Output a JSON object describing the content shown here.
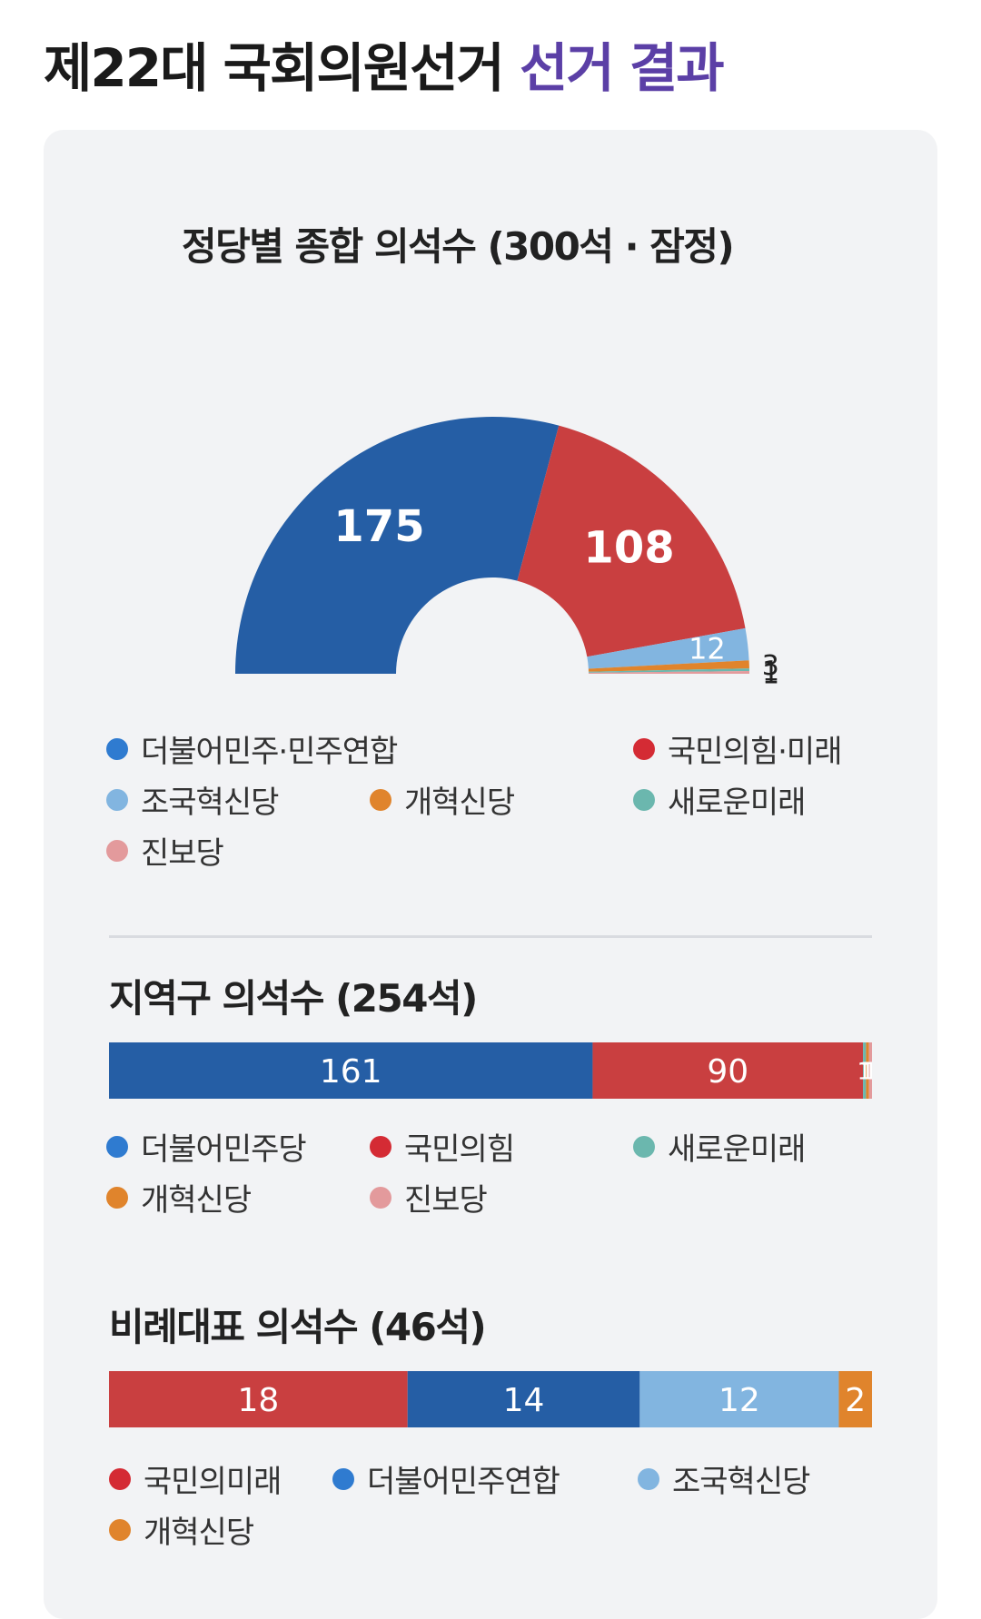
{
  "header": {
    "title_main": "제22대 국회의원선거",
    "title_accent": "선거 결과"
  },
  "colors": {
    "blue": "#255ea5",
    "red": "#c93f40",
    "light_blue": "#82b5e0",
    "orange": "#e0842c",
    "teal": "#6bb7ae",
    "pink": "#e39a9c",
    "accent": "#5b3fa6"
  },
  "total_chart": {
    "title": "정당별 종합 의석수 (300석 · 잠정)",
    "legend": [
      {
        "label": "더불어민주·민주연합",
        "color": "#2f7bd0"
      },
      {
        "label": "국민의힘·미래",
        "color": "#d42b34"
      },
      {
        "label": "조국혁신당",
        "color": "#82b5e0"
      },
      {
        "label": "개혁신당",
        "color": "#e0842c"
      },
      {
        "label": "새로운미래",
        "color": "#6bb7ae"
      },
      {
        "label": "진보당",
        "color": "#e39a9c"
      }
    ]
  },
  "district_chart": {
    "title": "지역구 의석수 (254석)",
    "legend": [
      {
        "label": "더불어민주당",
        "color": "#2f7bd0"
      },
      {
        "label": "국민의힘",
        "color": "#d42b34"
      },
      {
        "label": "새로운미래",
        "color": "#6bb7ae"
      },
      {
        "label": "개혁신당",
        "color": "#e0842c"
      },
      {
        "label": "진보당",
        "color": "#e39a9c"
      }
    ]
  },
  "pr_chart": {
    "title": "비례대표 의석수 (46석)",
    "legend": [
      {
        "label": "국민의미래",
        "color": "#d42b34"
      },
      {
        "label": "더불어민주연합",
        "color": "#2f7bd0"
      },
      {
        "label": "조국혁신당",
        "color": "#82b5e0"
      },
      {
        "label": "개혁신당",
        "color": "#e0842c"
      }
    ]
  },
  "chart_data": [
    {
      "type": "pie",
      "variant": "semicircle",
      "title": "정당별 종합 의석수 (300석 · 잠정)",
      "total": 300,
      "categories": [
        "더불어민주·민주연합",
        "국민의힘·미래",
        "조국혁신당",
        "개혁신당",
        "새로운미래",
        "진보당"
      ],
      "values": [
        175,
        108,
        12,
        3,
        1,
        1
      ],
      "colors": [
        "#255ea5",
        "#c93f40",
        "#82b5e0",
        "#e0842c",
        "#6bb7ae",
        "#e39a9c"
      ],
      "legend_position": "bottom"
    },
    {
      "type": "bar",
      "variant": "stacked-horizontal",
      "title": "지역구 의석수 (254석)",
      "total": 254,
      "categories": [
        "더불어민주당",
        "국민의힘",
        "새로운미래",
        "개혁신당",
        "진보당"
      ],
      "values": [
        161,
        90,
        1,
        1,
        1
      ],
      "colors": [
        "#255ea5",
        "#c93f40",
        "#6bb7ae",
        "#e0842c",
        "#e39a9c"
      ],
      "legend_position": "bottom"
    },
    {
      "type": "bar",
      "variant": "stacked-horizontal",
      "title": "비례대표 의석수 (46석)",
      "total": 46,
      "categories": [
        "국민의미래",
        "더불어민주연합",
        "조국혁신당",
        "개혁신당"
      ],
      "values": [
        18,
        14,
        12,
        2
      ],
      "colors": [
        "#c93f40",
        "#255ea5",
        "#82b5e0",
        "#e0842c"
      ],
      "legend_position": "bottom"
    }
  ]
}
